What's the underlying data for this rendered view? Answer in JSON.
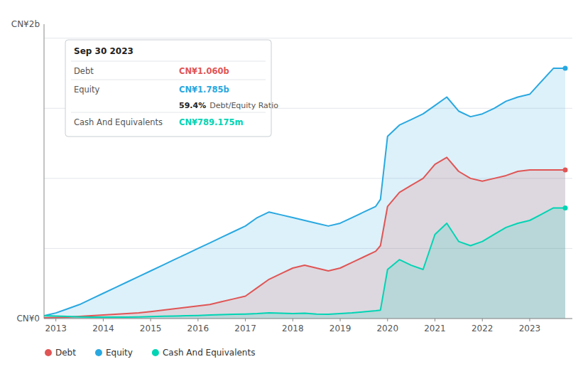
{
  "chart_data": {
    "type": "area",
    "annotations": [
      "CN¥2b",
      "CN¥0"
    ],
    "tooltip": {
      "title": "Sep 30 2023",
      "rows": [
        {
          "label": "Debt",
          "value_label": "CN¥1.060b",
          "color": "#e05555"
        },
        {
          "label": "Equity",
          "value_label": "CN¥1.785b",
          "color": "#29a8e0",
          "sub_value_label": "59.4%",
          "sub_label": "Debt/Equity Ratio"
        },
        {
          "label": "Cash And Equivalents",
          "value_label": "CN¥789.175m",
          "color": "#00d4b4"
        }
      ]
    },
    "x": [
      2012.75,
      2013.0,
      2013.25,
      2013.5,
      2013.75,
      2014.0,
      2014.25,
      2014.5,
      2014.75,
      2015.0,
      2015.25,
      2015.5,
      2015.75,
      2016.0,
      2016.25,
      2016.5,
      2016.75,
      2017.0,
      2017.25,
      2017.5,
      2017.75,
      2018.0,
      2018.25,
      2018.5,
      2018.75,
      2019.0,
      2019.25,
      2019.5,
      2019.75,
      2019.85,
      2020.0,
      2020.25,
      2020.5,
      2020.75,
      2021.0,
      2021.25,
      2021.5,
      2021.75,
      2022.0,
      2022.25,
      2022.5,
      2022.75,
      2023.0,
      2023.5,
      2023.75
    ],
    "series": [
      {
        "name": "Debt",
        "color": "#e05555",
        "values": [
          0.005,
          0.008,
          0.01,
          0.015,
          0.02,
          0.025,
          0.03,
          0.035,
          0.04,
          0.05,
          0.06,
          0.07,
          0.08,
          0.09,
          0.1,
          0.12,
          0.14,
          0.16,
          0.22,
          0.28,
          0.32,
          0.36,
          0.38,
          0.36,
          0.34,
          0.36,
          0.4,
          0.44,
          0.48,
          0.52,
          0.8,
          0.9,
          0.95,
          1.0,
          1.1,
          1.15,
          1.05,
          1.0,
          0.98,
          1.0,
          1.02,
          1.05,
          1.06,
          1.06,
          1.06
        ]
      },
      {
        "name": "Equity",
        "color": "#29a8e0",
        "values": [
          0.02,
          0.04,
          0.07,
          0.1,
          0.14,
          0.18,
          0.22,
          0.26,
          0.3,
          0.34,
          0.38,
          0.42,
          0.46,
          0.5,
          0.54,
          0.58,
          0.62,
          0.66,
          0.72,
          0.76,
          0.74,
          0.72,
          0.7,
          0.68,
          0.66,
          0.68,
          0.72,
          0.76,
          0.8,
          0.85,
          1.3,
          1.38,
          1.42,
          1.46,
          1.52,
          1.58,
          1.48,
          1.44,
          1.46,
          1.5,
          1.55,
          1.58,
          1.6,
          1.785,
          1.785
        ]
      },
      {
        "name": "Cash And Equivalents",
        "color": "#00d4b4",
        "values": [
          0.02,
          0.018,
          0.015,
          0.012,
          0.01,
          0.01,
          0.01,
          0.01,
          0.012,
          0.014,
          0.016,
          0.018,
          0.02,
          0.022,
          0.025,
          0.028,
          0.03,
          0.032,
          0.035,
          0.04,
          0.038,
          0.036,
          0.038,
          0.032,
          0.03,
          0.035,
          0.04,
          0.048,
          0.056,
          0.06,
          0.35,
          0.42,
          0.38,
          0.35,
          0.6,
          0.68,
          0.55,
          0.52,
          0.55,
          0.6,
          0.65,
          0.68,
          0.7,
          0.789,
          0.789
        ]
      }
    ],
    "xlim": [
      2012.75,
      2023.9
    ],
    "xticks": [
      2013,
      2014,
      2015,
      2016,
      2017,
      2018,
      2019,
      2020,
      2021,
      2022,
      2023
    ],
    "ylim": [
      0,
      2.1
    ],
    "yticks": [
      0,
      0.5,
      1,
      1.5,
      2
    ],
    "tick_labels": "x",
    "grid": true,
    "marker": "circle",
    "legend": "bottom"
  }
}
